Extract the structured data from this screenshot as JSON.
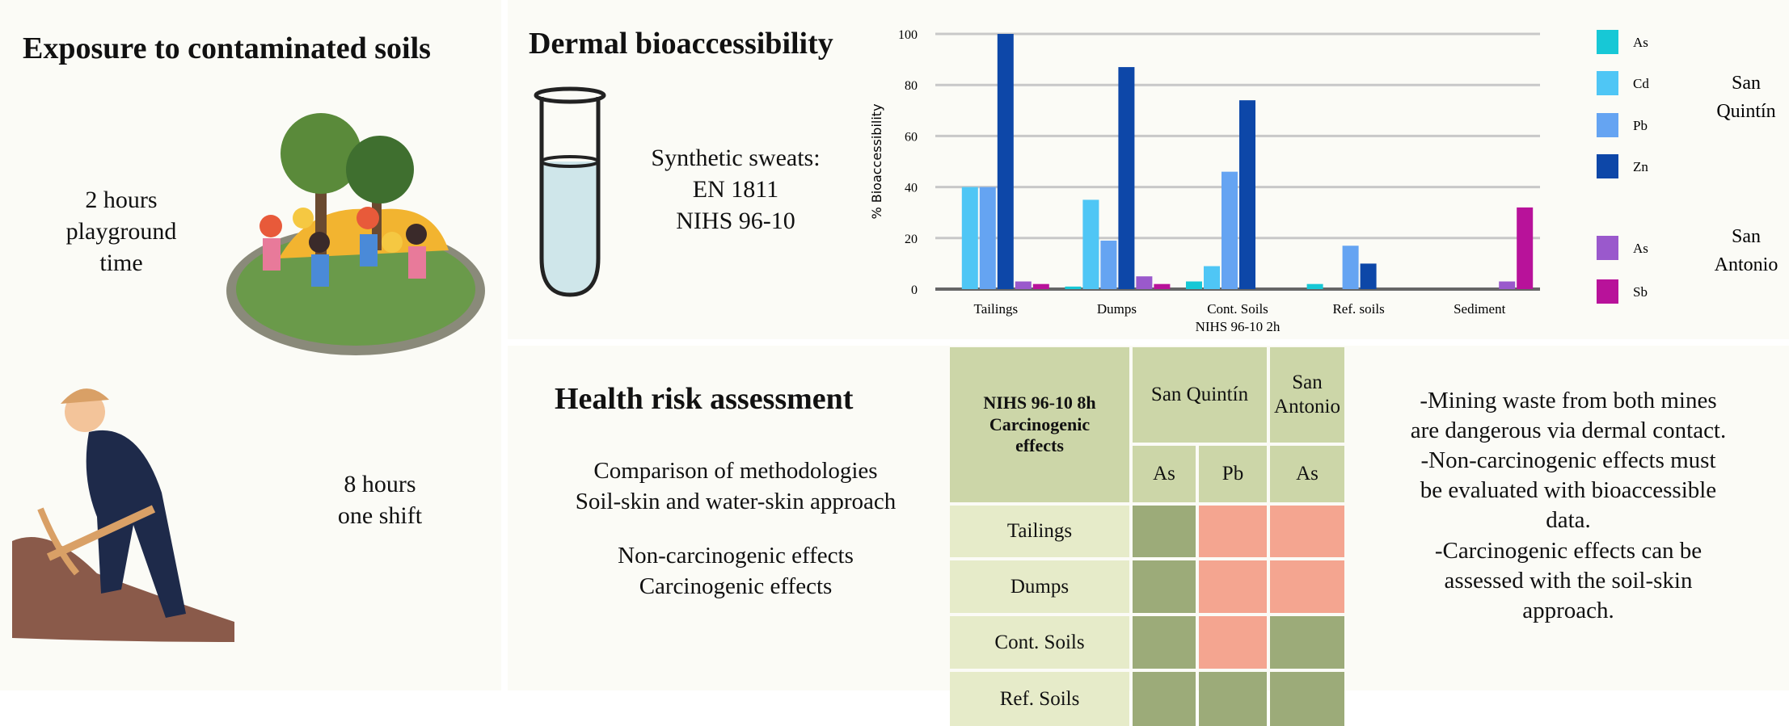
{
  "exposure": {
    "title": "Exposure to contaminated soils",
    "playground": [
      "2 hours",
      "playground",
      "time"
    ],
    "shift": [
      "8 hours",
      "one shift"
    ]
  },
  "dermal": {
    "title": "Dermal bioaccessibility",
    "sweats": [
      "Synthetic sweats:",
      "EN 1811",
      "NIHS 96-10"
    ]
  },
  "chart_data": {
    "type": "bar",
    "xlabel": "NIHS 96-10 2h",
    "ylabel": "% Bioaccessibility",
    "ylim": [
      0,
      100
    ],
    "yticks": [
      0,
      20,
      40,
      60,
      80,
      100
    ],
    "grid": true,
    "categories": [
      "Tailings",
      "Dumps",
      "Cont. Soils",
      "Ref. soils",
      "Sediment"
    ],
    "legend_groups": [
      {
        "label": "San Quintín",
        "entries": [
          "As",
          "Cd",
          "Pb",
          "Zn"
        ]
      },
      {
        "label": "San Antonio",
        "entries": [
          "As",
          "Sb"
        ]
      }
    ],
    "legend_group_labels": {
      "sq1": "San",
      "sq2": "Quintín",
      "sa1": "San",
      "sa2": "Antonio"
    },
    "series": [
      {
        "name": "As",
        "group": "San Quintín",
        "color": "#17c8d6",
        "values": [
          0,
          1,
          3,
          2,
          0
        ]
      },
      {
        "name": "Cd",
        "group": "San Quintín",
        "color": "#4fc6f5",
        "values": [
          40,
          35,
          9,
          0,
          0
        ]
      },
      {
        "name": "Pb",
        "group": "San Quintín",
        "color": "#65a4f2",
        "values": [
          40,
          19,
          46,
          17,
          0
        ]
      },
      {
        "name": "Zn",
        "group": "San Quintín",
        "color": "#0d47a8",
        "values": [
          100,
          87,
          74,
          10,
          0
        ]
      },
      {
        "name": "As",
        "group": "San Antonio",
        "color": "#9a59cc",
        "values": [
          3,
          5,
          0,
          0,
          3
        ]
      },
      {
        "name": "Sb",
        "group": "San Antonio",
        "color": "#b8129a",
        "values": [
          2,
          2,
          0,
          0,
          32
        ]
      }
    ]
  },
  "health": {
    "title": "Health risk assessment",
    "lines1": [
      "Comparison of methodologies",
      "Soil-skin and water-skin approach"
    ],
    "lines2": [
      "Non-carcinogenic effects",
      "Carcinogenic effects"
    ]
  },
  "table": {
    "corner": [
      "NIHS 96-10 8h",
      "Carcinogenic",
      "effects"
    ],
    "sq": "San Quintín",
    "sa": [
      "San",
      "Antonio"
    ],
    "cols": [
      "As",
      "Pb",
      "As"
    ],
    "rows": [
      {
        "label": "Tailings",
        "cells": [
          "low",
          "high",
          "high"
        ]
      },
      {
        "label": "Dumps",
        "cells": [
          "low",
          "high",
          "high"
        ]
      },
      {
        "label": "Cont. Soils",
        "cells": [
          "low",
          "high",
          "low"
        ]
      },
      {
        "label": "Ref. Soils",
        "cells": [
          "low",
          "low",
          "low"
        ]
      }
    ],
    "colors": {
      "low": "#9cab79",
      "high": "#f4a590"
    }
  },
  "conclusions": [
    "-Mining waste from both mines",
    "are dangerous via dermal contact.",
    "-Non-carcinogenic effects must",
    "be evaluated with bioaccessible",
    "data.",
    "-Carcinogenic effects can be",
    "assessed with the soil-skin",
    "approach."
  ]
}
